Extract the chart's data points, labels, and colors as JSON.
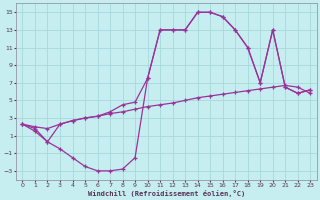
{
  "xlabel": "Windchill (Refroidissement éolien,°C)",
  "bg_color": "#c6eef0",
  "grid_color": "#a8d8dc",
  "line_color": "#993399",
  "xlim": [
    -0.5,
    23.5
  ],
  "ylim": [
    -4.0,
    16.0
  ],
  "xticks": [
    0,
    1,
    2,
    3,
    4,
    5,
    6,
    7,
    8,
    9,
    10,
    11,
    12,
    13,
    14,
    15,
    16,
    17,
    18,
    19,
    20,
    21,
    22,
    23
  ],
  "yticks": [
    -3,
    -1,
    1,
    3,
    5,
    7,
    9,
    11,
    13,
    15
  ],
  "line1_x": [
    0,
    1,
    2,
    3,
    4,
    5,
    6,
    7,
    8,
    9,
    10,
    11,
    12,
    13,
    14,
    15,
    16,
    17,
    18,
    19,
    20,
    21,
    22,
    23
  ],
  "line1_y": [
    2.3,
    1.8,
    0.3,
    -0.5,
    -1.5,
    -2.5,
    -3.0,
    -3.0,
    -2.8,
    -1.5,
    7.5,
    13.0,
    13.0,
    13.0,
    15.0,
    15.0,
    14.5,
    13.0,
    11.0,
    7.0,
    13.0,
    6.5,
    5.8,
    6.2
  ],
  "line2_x": [
    0,
    1,
    2,
    3,
    4,
    5,
    6,
    7,
    8,
    9,
    10,
    11,
    12,
    13,
    14,
    15,
    16,
    17,
    18,
    19,
    20,
    21,
    22,
    23
  ],
  "line2_y": [
    2.3,
    2.0,
    1.8,
    2.3,
    2.7,
    3.0,
    3.2,
    3.5,
    3.7,
    4.0,
    4.3,
    4.5,
    4.7,
    5.0,
    5.3,
    5.5,
    5.7,
    5.9,
    6.1,
    6.3,
    6.5,
    6.7,
    6.5,
    5.8
  ],
  "line3_x": [
    0,
    1,
    2,
    3,
    4,
    5,
    6,
    7,
    8,
    9,
    10,
    11,
    12,
    13,
    14,
    15,
    16,
    17,
    18,
    19,
    20,
    21,
    22,
    23
  ],
  "line3_y": [
    2.3,
    1.5,
    0.3,
    2.3,
    2.7,
    3.0,
    3.2,
    3.7,
    4.5,
    4.8,
    7.5,
    13.0,
    13.0,
    13.0,
    15.0,
    15.0,
    14.5,
    13.0,
    11.0,
    7.0,
    13.0,
    6.5,
    5.8,
    6.2
  ]
}
